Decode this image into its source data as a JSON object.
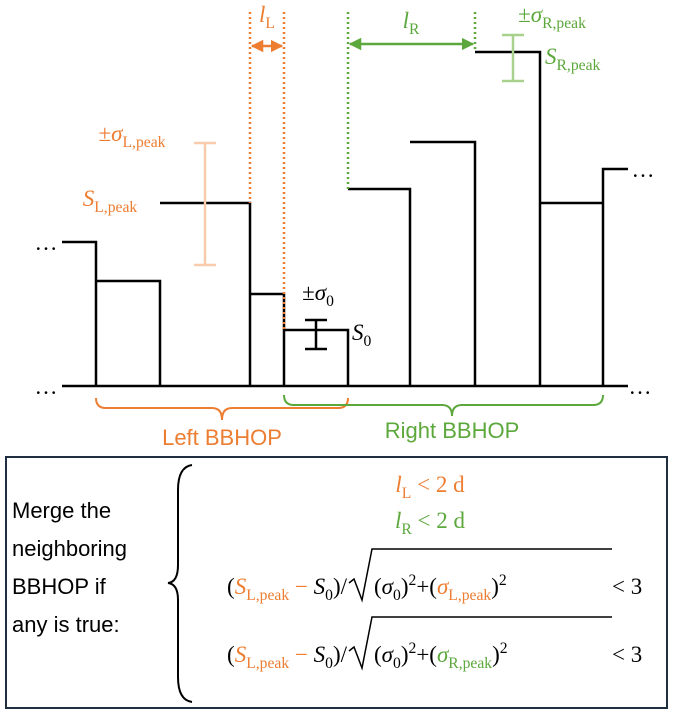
{
  "labels": [
    {
      "color": "#ed7d31",
      "parts": [
        {
          "text": "l",
          "sub": "L"
        }
      ]
    },
    {
      "color": "#5ca83c",
      "parts": [
        {
          "text": "l",
          "sub": "R"
        }
      ]
    },
    {
      "color": "#5ca83c",
      "parts": [
        {
          "text": "±"
        },
        {
          "text": "σ",
          "sub": "R,peak"
        }
      ]
    },
    {
      "color": "#5ca83c",
      "parts": [
        {
          "text": "S",
          "sub": "R,peak"
        }
      ]
    },
    {
      "color": "#ed7d31",
      "parts": [
        {
          "text": "±"
        },
        {
          "text": "σ",
          "sub": "L,peak"
        }
      ]
    },
    {
      "color": "#ed7d31",
      "parts": [
        {
          "text": "S",
          "sub": "L,peak"
        }
      ]
    },
    {
      "color": "#000000",
      "parts": [
        {
          "text": "±"
        },
        {
          "text": "σ",
          "sub": "0"
        }
      ]
    },
    {
      "color": "#000000",
      "parts": [
        {
          "text": "S",
          "sub": "0"
        }
      ]
    },
    {
      "color": "#000000",
      "parts": [
        {
          "text": "…"
        }
      ]
    },
    {
      "color": "#000000",
      "parts": [
        {
          "text": "…"
        }
      ]
    },
    {
      "color": "#000000",
      "parts": [
        {
          "text": "…"
        }
      ]
    },
    {
      "color": "#000000",
      "parts": [
        {
          "text": "…"
        }
      ]
    }
  ],
  "left_bbhop": "Left BBHOP",
  "right_bbhop": "Right BBHOP",
  "merge_text": [
    "Merge the",
    "neighboring",
    "BBHOP if",
    "any is true:"
  ],
  "conditions": [
    {
      "pre": [
        {
          "text": "l",
          "sub": "L",
          "color": "#ed7d31"
        },
        {
          "text": " < 2 d",
          "color": "#ed7d31"
        }
      ]
    },
    {
      "pre": [
        {
          "text": "l",
          "sub": "R",
          "color": "#5ca83c"
        },
        {
          "text": " < 2 d",
          "color": "#5ca83c"
        }
      ]
    },
    {
      "pre": [
        {
          "text": "("
        },
        {
          "text": "S",
          "sub": "L,peak",
          "color": "#ed7d31"
        },
        {
          "text": " − ",
          "color": "#ed7d31"
        },
        {
          "text": "S",
          "sub": "0"
        },
        {
          "text": ")/"
        }
      ],
      "radicand": [
        {
          "text": "("
        },
        {
          "text": "σ",
          "sub": "0"
        },
        {
          "text": ")",
          "sup": "2"
        },
        {
          "text": "+("
        },
        {
          "text": "σ",
          "sub": "L,peak",
          "color": "#ed7d31"
        },
        {
          "text": ")",
          "sup": "2"
        }
      ],
      "post": [
        {
          "text": " < 3"
        }
      ]
    },
    {
      "pre": [
        {
          "text": "("
        },
        {
          "text": "S",
          "sub": "L,peak",
          "color": "#ed7d31"
        },
        {
          "text": " − ",
          "color": "#ed7d31"
        },
        {
          "text": "S",
          "sub": "0"
        },
        {
          "text": ")/"
        }
      ],
      "radicand": [
        {
          "text": "("
        },
        {
          "text": "σ",
          "sub": "0"
        },
        {
          "text": ")",
          "sup": "2"
        },
        {
          "text": "+("
        },
        {
          "text": "σ",
          "sub": "R,peak",
          "color": "#5ca83c"
        },
        {
          "text": ")",
          "sup": "2"
        }
      ],
      "post": [
        {
          "text": " < 3"
        }
      ]
    }
  ]
}
